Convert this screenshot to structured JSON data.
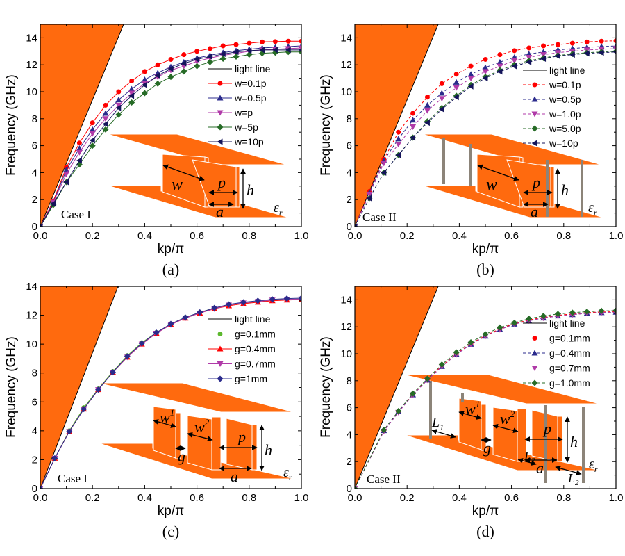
{
  "figure": {
    "orange": "#FF6A0E",
    "post_color": "#8C8479"
  },
  "chart_data": [
    {
      "id": "a",
      "type": "line",
      "panel_label": "(a)",
      "case_label": "Case I",
      "xlabel": "kp/π",
      "ylabel": "Frequency (GHz)",
      "xlim": [
        0,
        1.0
      ],
      "ylim": [
        0,
        15
      ],
      "xticks": [
        "0.0",
        "0.2",
        "0.4",
        "0.6",
        "0.8",
        "1.0"
      ],
      "yticks": [
        "0",
        "2",
        "4",
        "6",
        "8",
        "10",
        "12",
        "14"
      ],
      "light_line_slope": 47,
      "line_style": "solid",
      "x": [
        0,
        0.05,
        0.1,
        0.15,
        0.2,
        0.25,
        0.3,
        0.35,
        0.4,
        0.45,
        0.5,
        0.55,
        0.6,
        0.65,
        0.7,
        0.75,
        0.8,
        0.85,
        0.9,
        0.95,
        1.0
      ],
      "series": [
        {
          "name": "w=0.1p",
          "color": "#FF0000",
          "marker": "circle",
          "values": [
            0,
            1.9,
            4.4,
            6.2,
            7.7,
            9.0,
            10.0,
            10.8,
            11.5,
            12.0,
            12.4,
            12.75,
            13.0,
            13.2,
            13.4,
            13.5,
            13.6,
            13.7,
            13.72,
            13.75,
            13.75
          ]
        },
        {
          "name": "w=0.5p",
          "color": "#2B2B8C",
          "marker": "triangle-up",
          "values": [
            0,
            1.8,
            4.2,
            5.8,
            7.2,
            8.4,
            9.4,
            10.2,
            10.9,
            11.4,
            11.85,
            12.2,
            12.5,
            12.7,
            12.9,
            13.05,
            13.15,
            13.25,
            13.3,
            13.35,
            13.4
          ]
        },
        {
          "name": "w=p",
          "color": "#B03AA8",
          "marker": "triangle-down",
          "values": [
            0,
            1.8,
            3.9,
            5.5,
            6.9,
            8.0,
            9.0,
            9.9,
            10.6,
            11.1,
            11.6,
            11.9,
            12.25,
            12.5,
            12.7,
            12.85,
            13.0,
            13.1,
            13.15,
            13.2,
            13.25
          ]
        },
        {
          "name": "w=5p",
          "color": "#266B26",
          "marker": "diamond",
          "values": [
            0,
            1.6,
            3.3,
            4.6,
            6.0,
            7.2,
            8.3,
            9.2,
            9.9,
            10.6,
            11.1,
            11.5,
            11.9,
            12.2,
            12.45,
            12.6,
            12.75,
            12.85,
            12.9,
            12.95,
            12.95
          ]
        },
        {
          "name": "w=10p",
          "color": "#14145A",
          "marker": "triangle-left",
          "values": [
            0,
            1.7,
            3.3,
            4.9,
            6.4,
            7.6,
            8.8,
            9.7,
            10.5,
            11.2,
            11.7,
            12.1,
            12.4,
            12.6,
            12.8,
            12.95,
            13.05,
            13.1,
            13.1,
            13.1,
            13.1
          ]
        }
      ],
      "legend": {
        "placement": "right",
        "light_line_label": "light line"
      },
      "inset_labels": {
        "w": "w",
        "p": "p",
        "h": "h",
        "a": "a",
        "eps": "ε",
        "eps_sub": "r"
      }
    },
    {
      "id": "b",
      "type": "line",
      "panel_label": "(b)",
      "case_label": "Case II",
      "xlabel": "kp/π",
      "ylabel": "Frequency (GHz)",
      "xlim": [
        0,
        1.0
      ],
      "ylim": [
        0,
        15
      ],
      "xticks": [
        "0.0",
        "0.2",
        "0.4",
        "0.6",
        "0.8",
        "1.0"
      ],
      "yticks": [
        "0",
        "2",
        "4",
        "6",
        "8",
        "10",
        "12",
        "14"
      ],
      "light_line_slope": 47,
      "line_style": "dashed",
      "x": [
        0,
        0.0556,
        0.1111,
        0.1667,
        0.2222,
        0.2778,
        0.3333,
        0.3889,
        0.4444,
        0.5,
        0.5556,
        0.6111,
        0.6667,
        0.7222,
        0.7778,
        0.8333,
        0.8889,
        0.9444,
        1.0
      ],
      "series": [
        {
          "name": "w=0.1p",
          "color": "#FF0000",
          "marker": "circle",
          "values": [
            0,
            2.6,
            5.0,
            7.0,
            8.4,
            9.6,
            10.6,
            11.3,
            11.9,
            12.4,
            12.75,
            13.05,
            13.25,
            13.4,
            13.5,
            13.6,
            13.7,
            13.75,
            13.78
          ]
        },
        {
          "name": "w=0.5p",
          "color": "#2B2B8C",
          "marker": "triangle-up",
          "values": [
            0,
            2.5,
            4.9,
            6.5,
            7.9,
            9.0,
            9.9,
            10.7,
            11.3,
            11.8,
            12.2,
            12.55,
            12.8,
            12.95,
            13.1,
            13.2,
            13.3,
            13.35,
            13.4
          ]
        },
        {
          "name": "w=1.0p",
          "color": "#B03AA8",
          "marker": "triangle-down",
          "values": [
            0,
            2.4,
            4.7,
            6.1,
            7.4,
            8.6,
            9.5,
            10.3,
            11.0,
            11.5,
            11.9,
            12.3,
            12.55,
            12.75,
            12.9,
            13.0,
            13.1,
            13.15,
            13.2
          ]
        },
        {
          "name": "w=5.0p",
          "color": "#266B26",
          "marker": "diamond",
          "values": [
            0,
            2.1,
            4.0,
            5.3,
            6.6,
            7.8,
            8.8,
            9.7,
            10.5,
            11.1,
            11.6,
            12.0,
            12.3,
            12.5,
            12.7,
            12.8,
            12.9,
            12.95,
            13.0
          ]
        },
        {
          "name": "w=10p",
          "color": "#14145A",
          "marker": "triangle-left",
          "values": [
            0,
            2.1,
            4.0,
            5.3,
            6.6,
            7.7,
            8.7,
            9.6,
            10.4,
            11.0,
            11.5,
            11.9,
            12.2,
            12.45,
            12.65,
            12.75,
            12.85,
            12.9,
            12.95
          ]
        }
      ],
      "legend": {
        "placement": "right",
        "light_line_label": "light line"
      },
      "inset_labels": {
        "w": "w",
        "p": "p",
        "h": "h",
        "a": "a",
        "eps": "ε",
        "eps_sub": "r"
      }
    },
    {
      "id": "c",
      "type": "line",
      "panel_label": "(c)",
      "case_label": "Case I",
      "xlabel": "kp/π",
      "ylabel": "Frequency (GHz)",
      "xlim": [
        0,
        1.0
      ],
      "ylim": [
        0,
        14
      ],
      "xticks": [
        "0.0",
        "0.2",
        "0.4",
        "0.6",
        "0.8",
        "1.0"
      ],
      "yticks": [
        "0",
        "2",
        "4",
        "6",
        "8",
        "10",
        "12",
        "14"
      ],
      "light_line_slope": 47,
      "line_style": "solid",
      "x": [
        0,
        0.0556,
        0.1111,
        0.1667,
        0.2222,
        0.2778,
        0.3333,
        0.3889,
        0.4444,
        0.5,
        0.5556,
        0.6111,
        0.6667,
        0.7222,
        0.7778,
        0.8333,
        0.8889,
        0.9444,
        1.0
      ],
      "series": [
        {
          "name": "g=0.1mm",
          "color": "#5CB82E",
          "marker": "circle",
          "values": [
            0,
            2.1,
            4.0,
            5.6,
            6.9,
            8.1,
            9.2,
            10.1,
            10.8,
            11.4,
            11.85,
            12.2,
            12.5,
            12.7,
            12.85,
            12.95,
            13.05,
            13.1,
            13.12
          ]
        },
        {
          "name": "g=0.4mm",
          "color": "#FF0000",
          "marker": "triangle-up",
          "values": [
            0,
            2.1,
            3.95,
            5.5,
            6.85,
            8.05,
            9.1,
            10.0,
            10.75,
            11.35,
            11.8,
            12.15,
            12.45,
            12.65,
            12.8,
            12.9,
            13.0,
            13.05,
            13.08
          ]
        },
        {
          "name": "g=0.7mm",
          "color": "#B03AA8",
          "marker": "triangle-down",
          "values": [
            0,
            2.1,
            3.95,
            5.5,
            6.85,
            8.05,
            9.1,
            10.0,
            10.75,
            11.35,
            11.8,
            12.15,
            12.45,
            12.7,
            12.85,
            12.95,
            13.05,
            13.1,
            13.12
          ]
        },
        {
          "name": "g=1mm",
          "color": "#2B2B8C",
          "marker": "diamond",
          "values": [
            0,
            2.1,
            3.95,
            5.5,
            6.85,
            8.05,
            9.15,
            10.05,
            10.8,
            11.4,
            11.85,
            12.2,
            12.5,
            12.75,
            12.9,
            13.0,
            13.1,
            13.15,
            13.18
          ]
        }
      ],
      "legend": {
        "placement": "right",
        "light_line_label": "light line"
      },
      "inset_labels": {
        "w1": "w",
        "w1_sup": "1",
        "w2": "w",
        "w2_sup": "2",
        "g": "g",
        "p": "p",
        "h": "h",
        "a": "a",
        "eps": "ε",
        "eps_sub": "r"
      }
    },
    {
      "id": "d",
      "type": "line",
      "panel_label": "(d)",
      "case_label": "Case II",
      "xlabel": "kp/π",
      "ylabel": "Frequency (GHz)",
      "xlim": [
        0,
        1.0
      ],
      "ylim": [
        0,
        15
      ],
      "xticks": [
        "0.0",
        "0.2",
        "0.4",
        "0.6",
        "0.8",
        "1.0"
      ],
      "yticks": [
        "0",
        "2",
        "4",
        "6",
        "8",
        "10",
        "12",
        "14"
      ],
      "light_line_slope": 47,
      "line_style": "dashed",
      "x": [
        0,
        0.1111,
        0.1667,
        0.2222,
        0.2778,
        0.3333,
        0.3889,
        0.4444,
        0.5,
        0.5556,
        0.6111,
        0.6667,
        0.7222,
        0.7778,
        0.8333,
        0.8889,
        0.9444,
        1.0
      ],
      "series": [
        {
          "name": "g=0.1mm",
          "color": "#FF0000",
          "marker": "circle",
          "values": [
            0,
            4.3,
            5.7,
            7.0,
            8.1,
            9.1,
            10.0,
            10.75,
            11.35,
            11.85,
            12.25,
            12.5,
            12.7,
            12.85,
            12.95,
            13.05,
            13.1,
            13.12
          ]
        },
        {
          "name": "g=0.4mm",
          "color": "#2B2B8C",
          "marker": "triangle-up",
          "values": [
            0,
            4.3,
            5.7,
            6.95,
            8.05,
            9.05,
            9.95,
            10.7,
            11.3,
            11.8,
            12.2,
            12.45,
            12.65,
            12.8,
            12.9,
            13.0,
            13.05,
            13.08
          ]
        },
        {
          "name": "g=0.7mm",
          "color": "#B03AA8",
          "marker": "triangle-down",
          "values": [
            0,
            4.25,
            5.65,
            6.95,
            8.05,
            9.05,
            9.95,
            10.7,
            11.3,
            11.8,
            12.2,
            12.45,
            12.65,
            12.8,
            12.9,
            13.0,
            13.05,
            13.08
          ]
        },
        {
          "name": "g=1.0mm",
          "color": "#266B26",
          "marker": "diamond",
          "values": [
            0,
            4.35,
            5.75,
            7.05,
            8.15,
            9.2,
            10.1,
            10.85,
            11.45,
            11.95,
            12.3,
            12.6,
            12.8,
            12.95,
            13.05,
            13.12,
            13.18,
            13.2
          ]
        }
      ],
      "legend": {
        "placement": "right",
        "light_line_label": "light line"
      },
      "inset_labels": {
        "w1": "w",
        "w1_sup": "1",
        "w2": "w",
        "w2_sup": "2",
        "g": "g",
        "p": "p",
        "h": "h",
        "a": "a",
        "L1": "L",
        "L1_sub": "1",
        "L2": "L",
        "L2_sub": "2",
        "eps": "ε",
        "eps_sub": "r"
      }
    }
  ]
}
